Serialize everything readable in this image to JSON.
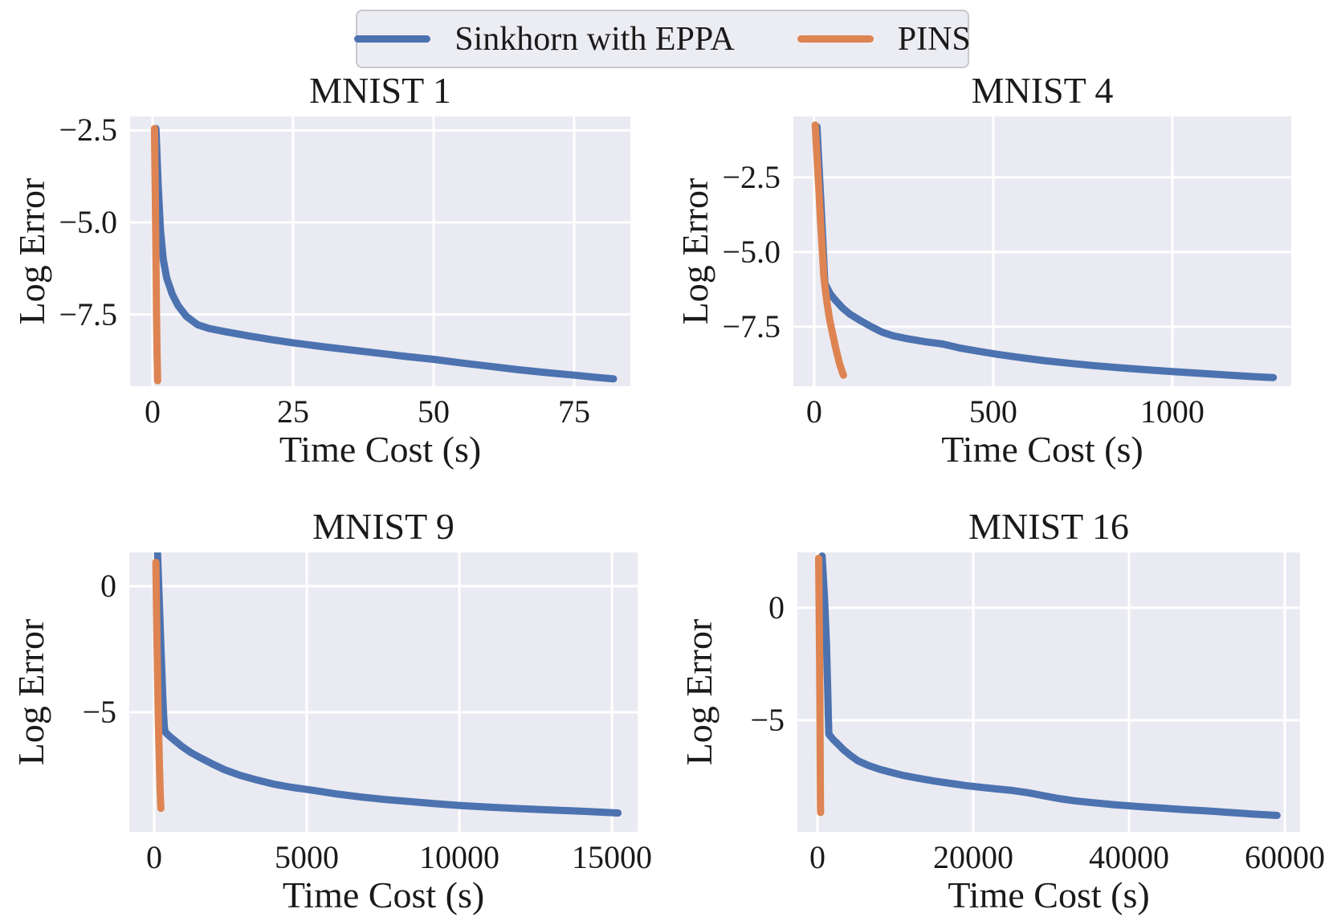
{
  "figure": {
    "legend": {
      "entries": [
        {
          "label": "Sinkhorn with EPPA",
          "color": "#4C72B0"
        },
        {
          "label": "PINS",
          "color": "#DD8452"
        }
      ]
    },
    "colors": {
      "axes_background": "#EAEAF2",
      "gridline": "#FFFFFF",
      "text": "#1a1a1a",
      "legend_background": "#ECECF3",
      "legend_border": "#C7C7CF"
    }
  },
  "chart_data": [
    {
      "type": "line",
      "title": "MNIST 1",
      "xlabel": "Time Cost (s)",
      "ylabel": "Log Error",
      "grid": true,
      "legend_position": "top-center-figure",
      "xlim": [
        -4.0,
        85.0
      ],
      "ylim": [
        -9.45,
        -2.12
      ],
      "xticks": [
        0,
        25,
        50,
        75
      ],
      "xtick_labels": [
        "0",
        "25",
        "50",
        "75"
      ],
      "yticks": [
        -2.5,
        -5.0,
        -7.5
      ],
      "ytick_labels": [
        "−2.5",
        "−5.0",
        "−7.5"
      ],
      "series": [
        {
          "name": "Sinkhorn with EPPA",
          "color": "#4C72B0",
          "points": [
            [
              0.6,
              -2.45
            ],
            [
              1.0,
              -4.0
            ],
            [
              1.4,
              -5.2
            ],
            [
              1.9,
              -6.0
            ],
            [
              2.5,
              -6.5
            ],
            [
              3.5,
              -6.95
            ],
            [
              4.5,
              -7.25
            ],
            [
              6,
              -7.55
            ],
            [
              8,
              -7.78
            ],
            [
              10,
              -7.88
            ],
            [
              13,
              -7.97
            ],
            [
              17,
              -8.08
            ],
            [
              21,
              -8.18
            ],
            [
              25,
              -8.27
            ],
            [
              30,
              -8.37
            ],
            [
              35,
              -8.46
            ],
            [
              40,
              -8.55
            ],
            [
              45,
              -8.64
            ],
            [
              50,
              -8.72
            ],
            [
              55,
              -8.82
            ],
            [
              60,
              -8.91
            ],
            [
              65,
              -9.0
            ],
            [
              70,
              -9.08
            ],
            [
              75,
              -9.15
            ],
            [
              79,
              -9.21
            ],
            [
              82,
              -9.25
            ]
          ]
        },
        {
          "name": "PINS",
          "color": "#DD8452",
          "points": [
            [
              0.35,
              -2.45
            ],
            [
              0.5,
              -4.5
            ],
            [
              0.6,
              -6.0
            ],
            [
              0.7,
              -7.5
            ],
            [
              0.8,
              -8.6
            ],
            [
              0.9,
              -9.3
            ]
          ]
        }
      ]
    },
    {
      "type": "line",
      "title": "MNIST 4",
      "xlabel": "Time Cost (s)",
      "ylabel": "Log Error",
      "grid": true,
      "xlim": [
        -58,
        1332
      ],
      "ylim": [
        -9.49,
        -0.46
      ],
      "xticks": [
        0,
        500,
        1000
      ],
      "xtick_labels": [
        "0",
        "500",
        "1000"
      ],
      "yticks": [
        -2.5,
        -5.0,
        -7.5
      ],
      "ytick_labels": [
        "−2.5",
        "−5.0",
        "−7.5"
      ],
      "series": [
        {
          "name": "Sinkhorn with EPPA",
          "color": "#4C72B0",
          "points": [
            [
              8,
              -0.8
            ],
            [
              14,
              -2.2
            ],
            [
              20,
              -3.6
            ],
            [
              25,
              -4.8
            ],
            [
              28,
              -5.6
            ],
            [
              30,
              -6.05
            ],
            [
              45,
              -6.4
            ],
            [
              60,
              -6.62
            ],
            [
              80,
              -6.88
            ],
            [
              100,
              -7.08
            ],
            [
              130,
              -7.3
            ],
            [
              160,
              -7.5
            ],
            [
              190,
              -7.68
            ],
            [
              220,
              -7.8
            ],
            [
              260,
              -7.9
            ],
            [
              310,
              -8.0
            ],
            [
              360,
              -8.08
            ],
            [
              410,
              -8.22
            ],
            [
              460,
              -8.32
            ],
            [
              510,
              -8.42
            ],
            [
              570,
              -8.52
            ],
            [
              640,
              -8.63
            ],
            [
              710,
              -8.72
            ],
            [
              780,
              -8.8
            ],
            [
              850,
              -8.87
            ],
            [
              920,
              -8.93
            ],
            [
              1000,
              -9.0
            ],
            [
              1080,
              -9.06
            ],
            [
              1160,
              -9.12
            ],
            [
              1230,
              -9.17
            ],
            [
              1282,
              -9.2
            ]
          ]
        },
        {
          "name": "PINS",
          "color": "#DD8452",
          "points": [
            [
              3,
              -0.75
            ],
            [
              8,
              -1.8
            ],
            [
              13,
              -2.9
            ],
            [
              18,
              -4.0
            ],
            [
              23,
              -5.0
            ],
            [
              27,
              -5.8
            ],
            [
              30,
              -6.15
            ],
            [
              36,
              -6.7
            ],
            [
              43,
              -7.25
            ],
            [
              51,
              -7.7
            ],
            [
              60,
              -8.2
            ],
            [
              70,
              -8.7
            ],
            [
              78,
              -9.0
            ],
            [
              82,
              -9.12
            ]
          ]
        }
      ]
    },
    {
      "type": "line",
      "title": "MNIST 9",
      "xlabel": "Time Cost (s)",
      "ylabel": "Log Error",
      "grid": true,
      "xlim": [
        -816,
        15842
      ],
      "ylim": [
        -9.75,
        1.34
      ],
      "xticks": [
        0,
        5000,
        10000,
        15000
      ],
      "xtick_labels": [
        "0",
        "5000",
        "10000",
        "15000"
      ],
      "yticks": [
        0,
        -5
      ],
      "ytick_labels": [
        "0",
        "−5"
      ],
      "series": [
        {
          "name": "Sinkhorn with EPPA",
          "color": "#4C72B0",
          "points": [
            [
              110,
              1.3
            ],
            [
              180,
              -1.0
            ],
            [
              240,
              -3.0
            ],
            [
              290,
              -4.6
            ],
            [
              330,
              -5.55
            ],
            [
              355,
              -5.78
            ],
            [
              500,
              -5.95
            ],
            [
              700,
              -6.15
            ],
            [
              900,
              -6.35
            ],
            [
              1200,
              -6.6
            ],
            [
              1500,
              -6.8
            ],
            [
              1900,
              -7.05
            ],
            [
              2300,
              -7.28
            ],
            [
              2800,
              -7.5
            ],
            [
              3300,
              -7.67
            ],
            [
              3900,
              -7.85
            ],
            [
              4500,
              -7.98
            ],
            [
              5200,
              -8.1
            ],
            [
              6000,
              -8.25
            ],
            [
              6800,
              -8.37
            ],
            [
              7600,
              -8.47
            ],
            [
              8400,
              -8.55
            ],
            [
              9200,
              -8.63
            ],
            [
              10000,
              -8.7
            ],
            [
              11000,
              -8.77
            ],
            [
              12000,
              -8.83
            ],
            [
              13000,
              -8.88
            ],
            [
              14000,
              -8.93
            ],
            [
              15200,
              -9.0
            ]
          ]
        },
        {
          "name": "PINS",
          "color": "#DD8452",
          "points": [
            [
              55,
              0.95
            ],
            [
              75,
              -0.8
            ],
            [
              95,
              -2.4
            ],
            [
              115,
              -3.9
            ],
            [
              135,
              -5.2
            ],
            [
              155,
              -6.3
            ],
            [
              175,
              -7.3
            ],
            [
              195,
              -8.1
            ],
            [
              210,
              -8.6
            ],
            [
              222,
              -8.82
            ]
          ]
        }
      ]
    },
    {
      "type": "line",
      "title": "MNIST 16",
      "xlabel": "Time Cost (s)",
      "ylabel": "Log Error",
      "grid": true,
      "xlim": [
        -2577,
        61960
      ],
      "ylim": [
        -9.96,
        2.46
      ],
      "xticks": [
        0,
        20000,
        40000,
        60000
      ],
      "xtick_labels": [
        "0",
        "20000",
        "40000",
        "60000"
      ],
      "yticks": [
        0,
        -5
      ],
      "ytick_labels": [
        "0",
        "−5"
      ],
      "series": [
        {
          "name": "Sinkhorn with EPPA",
          "color": "#4C72B0",
          "points": [
            [
              600,
              2.3
            ],
            [
              900,
              0.5
            ],
            [
              1150,
              -1.6
            ],
            [
              1300,
              -3.4
            ],
            [
              1400,
              -4.9
            ],
            [
              1460,
              -5.62
            ],
            [
              2000,
              -5.85
            ],
            [
              2600,
              -6.05
            ],
            [
              3300,
              -6.3
            ],
            [
              4200,
              -6.55
            ],
            [
              5200,
              -6.8
            ],
            [
              6500,
              -7.0
            ],
            [
              8000,
              -7.18
            ],
            [
              9500,
              -7.32
            ],
            [
              11000,
              -7.45
            ],
            [
              13000,
              -7.58
            ],
            [
              15000,
              -7.7
            ],
            [
              17000,
              -7.8
            ],
            [
              19000,
              -7.9
            ],
            [
              21000,
              -7.98
            ],
            [
              23000,
              -8.05
            ],
            [
              25000,
              -8.12
            ],
            [
              27000,
              -8.22
            ],
            [
              29000,
              -8.35
            ],
            [
              31000,
              -8.48
            ],
            [
              33000,
              -8.58
            ],
            [
              35000,
              -8.65
            ],
            [
              38000,
              -8.75
            ],
            [
              41000,
              -8.83
            ],
            [
              44000,
              -8.9
            ],
            [
              47000,
              -8.97
            ],
            [
              50000,
              -9.03
            ],
            [
              53000,
              -9.1
            ],
            [
              56000,
              -9.17
            ],
            [
              59000,
              -9.23
            ]
          ]
        },
        {
          "name": "PINS",
          "color": "#DD8452",
          "points": [
            [
              150,
              2.2
            ],
            [
              220,
              0.0
            ],
            [
              270,
              -2.0
            ],
            [
              310,
              -4.0
            ],
            [
              340,
              -6.0
            ],
            [
              365,
              -7.5
            ],
            [
              385,
              -8.6
            ],
            [
              400,
              -9.1
            ]
          ]
        }
      ]
    }
  ]
}
